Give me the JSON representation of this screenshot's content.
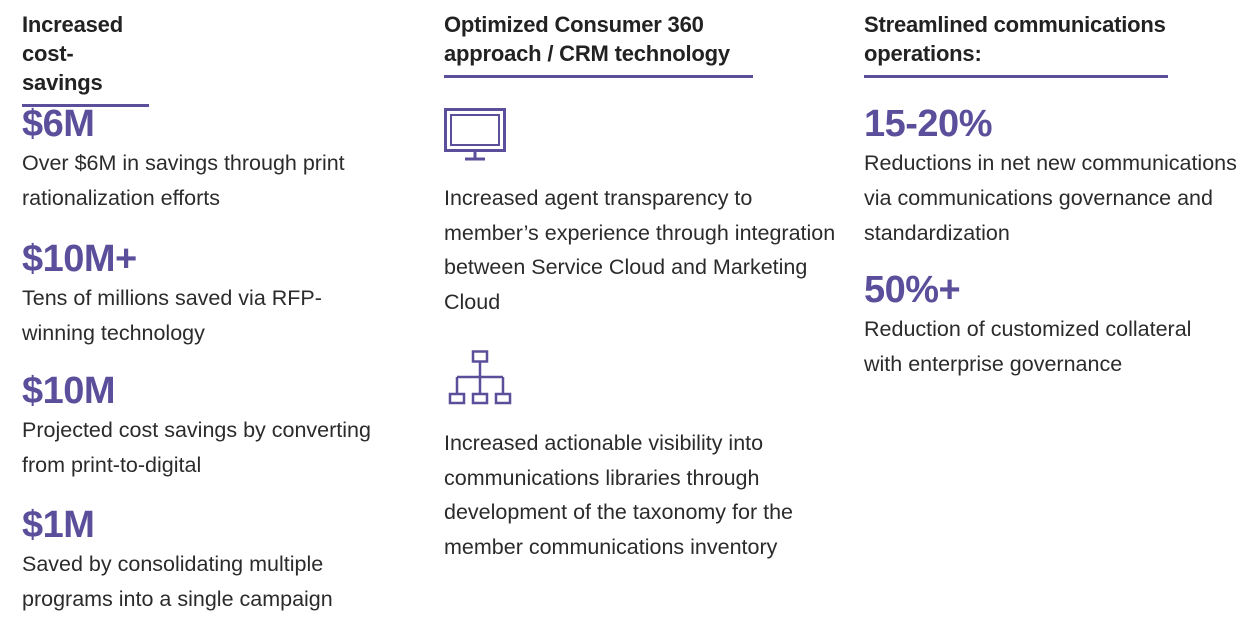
{
  "columns": [
    {
      "title": "Increased\ncost-savings",
      "stats": [
        {
          "value": "$6M",
          "desc": "Over $6M in savings through print rationalization efforts"
        },
        {
          "value": "$10M+",
          "desc": "Tens of millions saved via RFP-winning technology"
        },
        {
          "value": "$10M",
          "desc": "Projected cost savings by converting from print-to-digital"
        },
        {
          "value": "$1M",
          "desc": "Saved by consolidating multiple programs into a single campaign"
        }
      ]
    },
    {
      "title": "Optimized Consumer 360\napproach / CRM technology",
      "features": [
        {
          "icon": "monitor-icon",
          "desc": "Increased agent transparency to member’s experience through integration between Service Cloud and Marketing Cloud"
        },
        {
          "icon": "hierarchy-icon",
          "desc": "Increased actionable visibility into communications libraries through development of the taxonomy for the member communications inventory"
        }
      ]
    },
    {
      "title": "Streamlined communications\noperations:",
      "stats": [
        {
          "value": "15-20%",
          "desc": "Reductions in net new communications via communications governance and standardization"
        },
        {
          "value": "50%+",
          "desc": "Reduction of customized collateral with enterprise governance"
        }
      ]
    }
  ],
  "colors": {
    "accent": "#5b4f9b",
    "text": "#2b2b2b"
  }
}
